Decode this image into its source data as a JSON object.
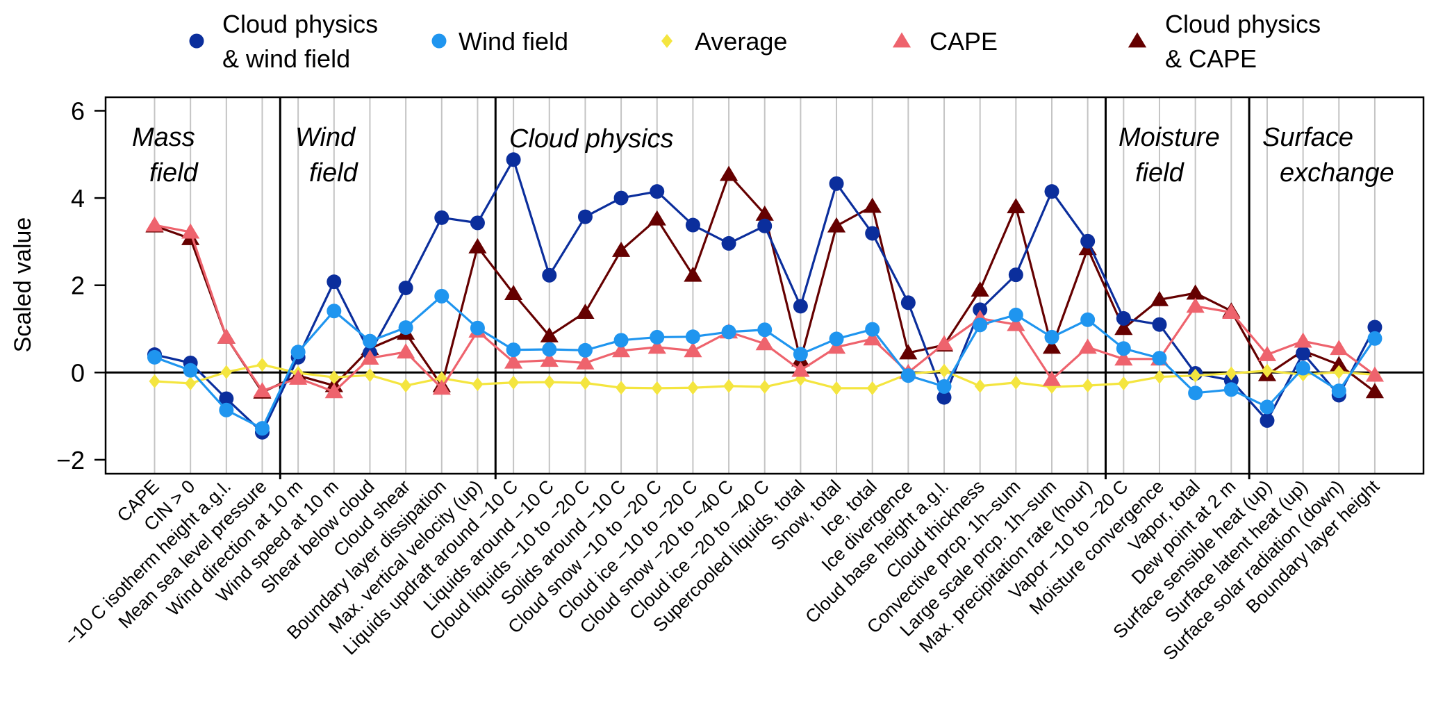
{
  "chart_data": {
    "type": "line",
    "title": "",
    "xlabel": "",
    "ylabel": "Scaled value",
    "ylim": [
      -2.32,
      6.31
    ],
    "yticks": [
      -2,
      0,
      2,
      4,
      6
    ],
    "ytick_labels": [
      "−2",
      "0",
      "2",
      "4",
      "6"
    ],
    "grid": "vertical lines at each category",
    "legend_position": "top",
    "categories": [
      "CAPE",
      "CIN > 0",
      "−10 C isotherm height a.g.l.",
      "Mean sea level pressure",
      "Wind direction at 10 m",
      "Wind speed at 10 m",
      "Shear below cloud",
      "Cloud shear",
      "Boundary layer dissipation",
      "Max. vertical velocity (up)",
      "Liquids updraft around −10 C",
      "Liquids around −10 C",
      "Cloud liquids −10 to −20 C",
      "Solids around −10 C",
      "Cloud snow −10 to −20 C",
      "Cloud ice −10 to −20 C",
      "Cloud snow −20 to −40 C",
      "Cloud ice −20 to −40 C",
      "Supercooled liquids, total",
      "Snow, total",
      "Ice, total",
      "Ice divergence",
      "Cloud base height a.g.l.",
      "Cloud thickness",
      "Convective prcp. 1h–sum",
      "Large scale prcp. 1h–sum",
      "Max. precipitation rate (hour)",
      "Vapor −10 to −20 C",
      "Moisture convergence",
      "Vapor, total",
      "Dew point at 2 m",
      "Surface sensible heat (up)",
      "Surface latent heat (up)",
      "Surface solar radiation (down)",
      "Boundary layer height"
    ],
    "groups": [
      {
        "lines": [
          "Mass",
          "field"
        ],
        "start": 0,
        "end": 3
      },
      {
        "lines": [
          "Wind",
          "field"
        ],
        "start": 4,
        "end": 9
      },
      {
        "lines": [
          "Cloud physics"
        ],
        "start": 10,
        "end": 26
      },
      {
        "lines": [
          "Moisture",
          "field"
        ],
        "start": 27,
        "end": 30
      },
      {
        "lines": [
          "Surface",
          "exchange"
        ],
        "start": 31,
        "end": 34
      }
    ],
    "series": [
      {
        "name": "Cloud physics & wind field",
        "legend_lines": [
          "Cloud physics",
          "& wind field"
        ],
        "marker": "circle",
        "color": "#0B2E9C",
        "values": [
          0.41,
          0.22,
          -0.6,
          -1.37,
          0.35,
          2.08,
          0.45,
          1.94,
          3.55,
          3.43,
          4.88,
          2.23,
          3.57,
          4.0,
          4.15,
          3.38,
          2.96,
          3.36,
          1.52,
          4.33,
          3.19,
          1.6,
          -0.57,
          1.44,
          2.24,
          4.15,
          3.01,
          1.24,
          1.1,
          -0.02,
          -0.18,
          -1.1,
          0.44,
          -0.52,
          1.04
        ]
      },
      {
        "name": "Wind field",
        "legend_lines": [
          "Wind field"
        ],
        "marker": "circle",
        "color": "#1F95EF",
        "values": [
          0.35,
          0.05,
          -0.86,
          -1.28,
          0.47,
          1.41,
          0.72,
          1.03,
          1.75,
          1.02,
          0.52,
          0.53,
          0.51,
          0.74,
          0.81,
          0.82,
          0.93,
          0.98,
          0.42,
          0.77,
          0.99,
          -0.07,
          -0.32,
          1.09,
          1.32,
          0.81,
          1.21,
          0.55,
          0.33,
          -0.47,
          -0.39,
          -0.79,
          0.1,
          -0.42,
          0.78
        ]
      },
      {
        "name": "Average",
        "legend_lines": [
          "Average"
        ],
        "marker": "diamond",
        "color": "#F4E53F",
        "values": [
          -0.2,
          -0.25,
          0.01,
          0.18,
          -0.01,
          -0.11,
          -0.06,
          -0.3,
          -0.13,
          -0.27,
          -0.23,
          -0.22,
          -0.24,
          -0.35,
          -0.36,
          -0.35,
          -0.31,
          -0.33,
          -0.15,
          -0.36,
          -0.36,
          -0.03,
          0.04,
          -0.31,
          -0.23,
          -0.33,
          -0.3,
          -0.25,
          -0.1,
          -0.07,
          -0.02,
          0.04,
          -0.05,
          0.01,
          -0.05
        ]
      },
      {
        "name": "CAPE",
        "legend_lines": [
          "CAPE"
        ],
        "marker": "triangle",
        "color": "#EE636D",
        "values": [
          3.38,
          3.22,
          0.81,
          -0.42,
          -0.13,
          -0.44,
          0.33,
          0.47,
          -0.36,
          0.95,
          0.24,
          0.28,
          0.22,
          0.5,
          0.58,
          0.5,
          0.93,
          0.66,
          0.05,
          0.58,
          0.77,
          0.0,
          0.66,
          1.24,
          1.1,
          -0.16,
          0.58,
          0.31,
          0.31,
          1.52,
          1.38,
          0.41,
          0.72,
          0.55,
          -0.06
        ]
      },
      {
        "name": "Cloud physics & CAPE",
        "legend_lines": [
          "Cloud physics",
          "& CAPE"
        ],
        "marker": "triangle",
        "color": "#650000",
        "values": [
          3.36,
          3.07,
          0.81,
          -0.45,
          -0.07,
          -0.3,
          0.55,
          0.9,
          -0.3,
          2.88,
          1.81,
          0.84,
          1.38,
          2.8,
          3.52,
          2.23,
          4.54,
          3.63,
          0.29,
          3.36,
          3.81,
          0.45,
          0.63,
          1.89,
          3.8,
          0.58,
          2.84,
          1.01,
          1.67,
          1.82,
          1.41,
          -0.05,
          0.5,
          0.18,
          -0.44
        ]
      }
    ]
  }
}
